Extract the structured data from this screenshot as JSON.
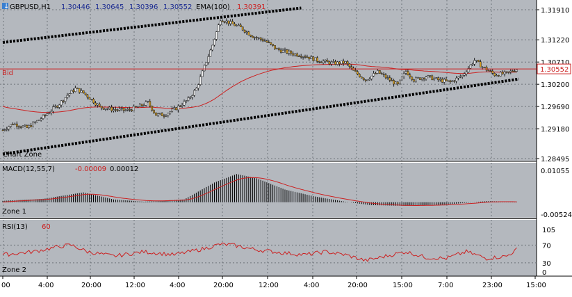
{
  "chart_data": {
    "type": "candlestick",
    "symbol": "GBPUSD,H1",
    "ohlc_header": [
      "1.30446",
      "1.30645",
      "1.30396",
      "1.30552"
    ],
    "ema_label": "EMA(100)",
    "ema_value": "1.30391",
    "bid_label": "Bid",
    "bid_value": "1.30552",
    "bid_price": 1.30552,
    "price_ticks": [
      "1.31910",
      "1.31220",
      "1.30710",
      "1.30200",
      "1.29690",
      "1.29180",
      "1.28495"
    ],
    "price_range": [
      1.28495,
      1.3191
    ],
    "main_zone_label": "Chart Zone",
    "macd": {
      "label": "MACD(12,55,7)",
      "value1": "-0.00009",
      "value2": "0.00012",
      "ticks": [
        "0.01055",
        "-0.00524"
      ],
      "range": [
        -0.00524,
        0.01055
      ],
      "zone_label": "Zone 1"
    },
    "rsi": {
      "label": "RSI(13)",
      "value": "60",
      "ticks": [
        "105",
        "70",
        "30",
        "0"
      ],
      "range": [
        0,
        105
      ],
      "zone_label": "Zone 2"
    },
    "time_ticks": [
      "00",
      "4:00",
      "20:00",
      "12:00",
      "4:00",
      "20:00",
      "12:00",
      "4:00",
      "20:00",
      "15:00",
      "7:00",
      "23:00",
      "15:00"
    ],
    "trendlines": [
      {
        "name": "upper-channel",
        "from": [
          0,
          1.3116
        ],
        "to": [
          146,
          1.3195
        ]
      },
      {
        "name": "lower-channel",
        "from": [
          0,
          1.286
        ],
        "to": [
          254,
          1.3032
        ]
      }
    ],
    "colors": {
      "background": "#b4b8be",
      "bull": "#f0f0f0",
      "bear": "#d9a020",
      "ema": "#cc2020",
      "trendline": "#000000",
      "bid": "#cc2020"
    }
  }
}
